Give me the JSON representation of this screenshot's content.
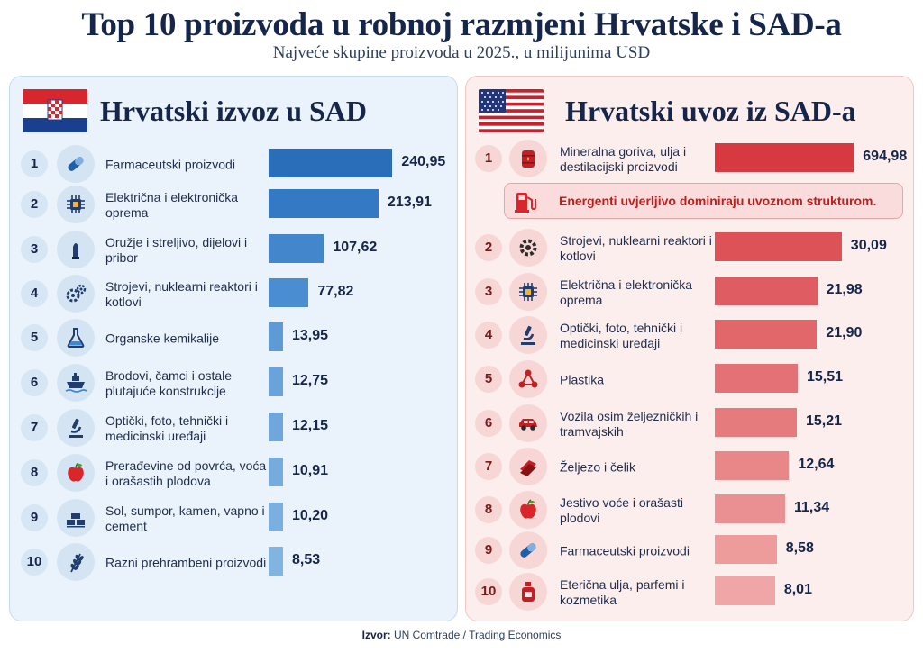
{
  "title": "Top 10 proizvoda u robnoj razmjeni Hrvatske i SAD-a",
  "subtitle": "Najveće skupine proizvoda u 2025., u milijunima USD",
  "source_label": "Izvor:",
  "source_text": "UN Comtrade / Trading Economics",
  "colors": {
    "export_bar": "#2f76c2",
    "import_bar": "#d9464b",
    "navy": "#16254a"
  },
  "chart_data": [
    {
      "type": "bar",
      "title": "Hrvatski izvoz u SAD",
      "categories": [
        "Farmaceutski proizvodi",
        "Električna i elektronička oprema",
        "Oružje i streljivo, dijelovi i pribor",
        "Strojevi, nuklearni reaktori i kotlovi",
        "Organske kemikalije",
        "Brodovi, čamci i ostale plutajuće konstrukcije",
        "Optički, foto, tehnički i medicinski uređaji",
        "Prerađevine od povrća, voća i orašastih plodova",
        "Sol, sumpor, kamen, vapno i cement",
        "Razni prehrambeni proizvodi"
      ],
      "values": [
        240.95,
        213.91,
        107.62,
        77.82,
        13.95,
        12.75,
        12.15,
        10.91,
        10.2,
        8.53
      ],
      "value_labels": [
        "240,95",
        "213,91",
        "107,62",
        "77,82",
        "13,95",
        "12,75",
        "12,15",
        "10,91",
        "10,20",
        "8,53"
      ],
      "ranks": [
        "1",
        "2",
        "3",
        "4",
        "5",
        "6",
        "7",
        "8",
        "9",
        "10"
      ],
      "icons": [
        "pill-icon",
        "chip-icon",
        "bullet-icon",
        "gears-icon",
        "flask-icon",
        "ship-icon",
        "microscope-icon",
        "apple-icon",
        "bricks-icon",
        "wheat-icon"
      ]
    },
    {
      "type": "bar",
      "title": "Hrvatski uvoz iz SAD-a",
      "categories": [
        "Mineralna goriva, ulja i destilacijski proizvodi",
        "Strojevi, nuklearni reaktori i kotlovi",
        "Električna i elektronička oprema",
        "Optički, foto, tehnički i medicinski uređaji",
        "Plastika",
        "Vozila osim željezničkih i tramvajskih",
        "Željezo i čelik",
        "Jestivo voće i orašasti plodovi",
        "Farmaceutski proizvodi",
        "Eterična ulja, parfemi i kozmetika"
      ],
      "values": [
        694.98,
        30.09,
        21.98,
        21.9,
        15.51,
        15.21,
        12.64,
        11.34,
        8.58,
        8.01
      ],
      "value_labels": [
        "694,98",
        "30,09",
        "21,98",
        "21,90",
        "15,51",
        "15,21",
        "12,64",
        "11,34",
        "8,58",
        "8,01"
      ],
      "ranks": [
        "1",
        "2",
        "3",
        "4",
        "5",
        "6",
        "7",
        "8",
        "9",
        "10"
      ],
      "icons": [
        "oil-barrel-icon",
        "gear-icon",
        "chip-icon",
        "microscope-icon",
        "molecule-icon",
        "car-icon",
        "steel-icon",
        "apple-icon",
        "pill-icon",
        "perfume-icon"
      ],
      "annotation": "Energenti uvjerljivo dominiraju uvoznom strukturom."
    }
  ]
}
